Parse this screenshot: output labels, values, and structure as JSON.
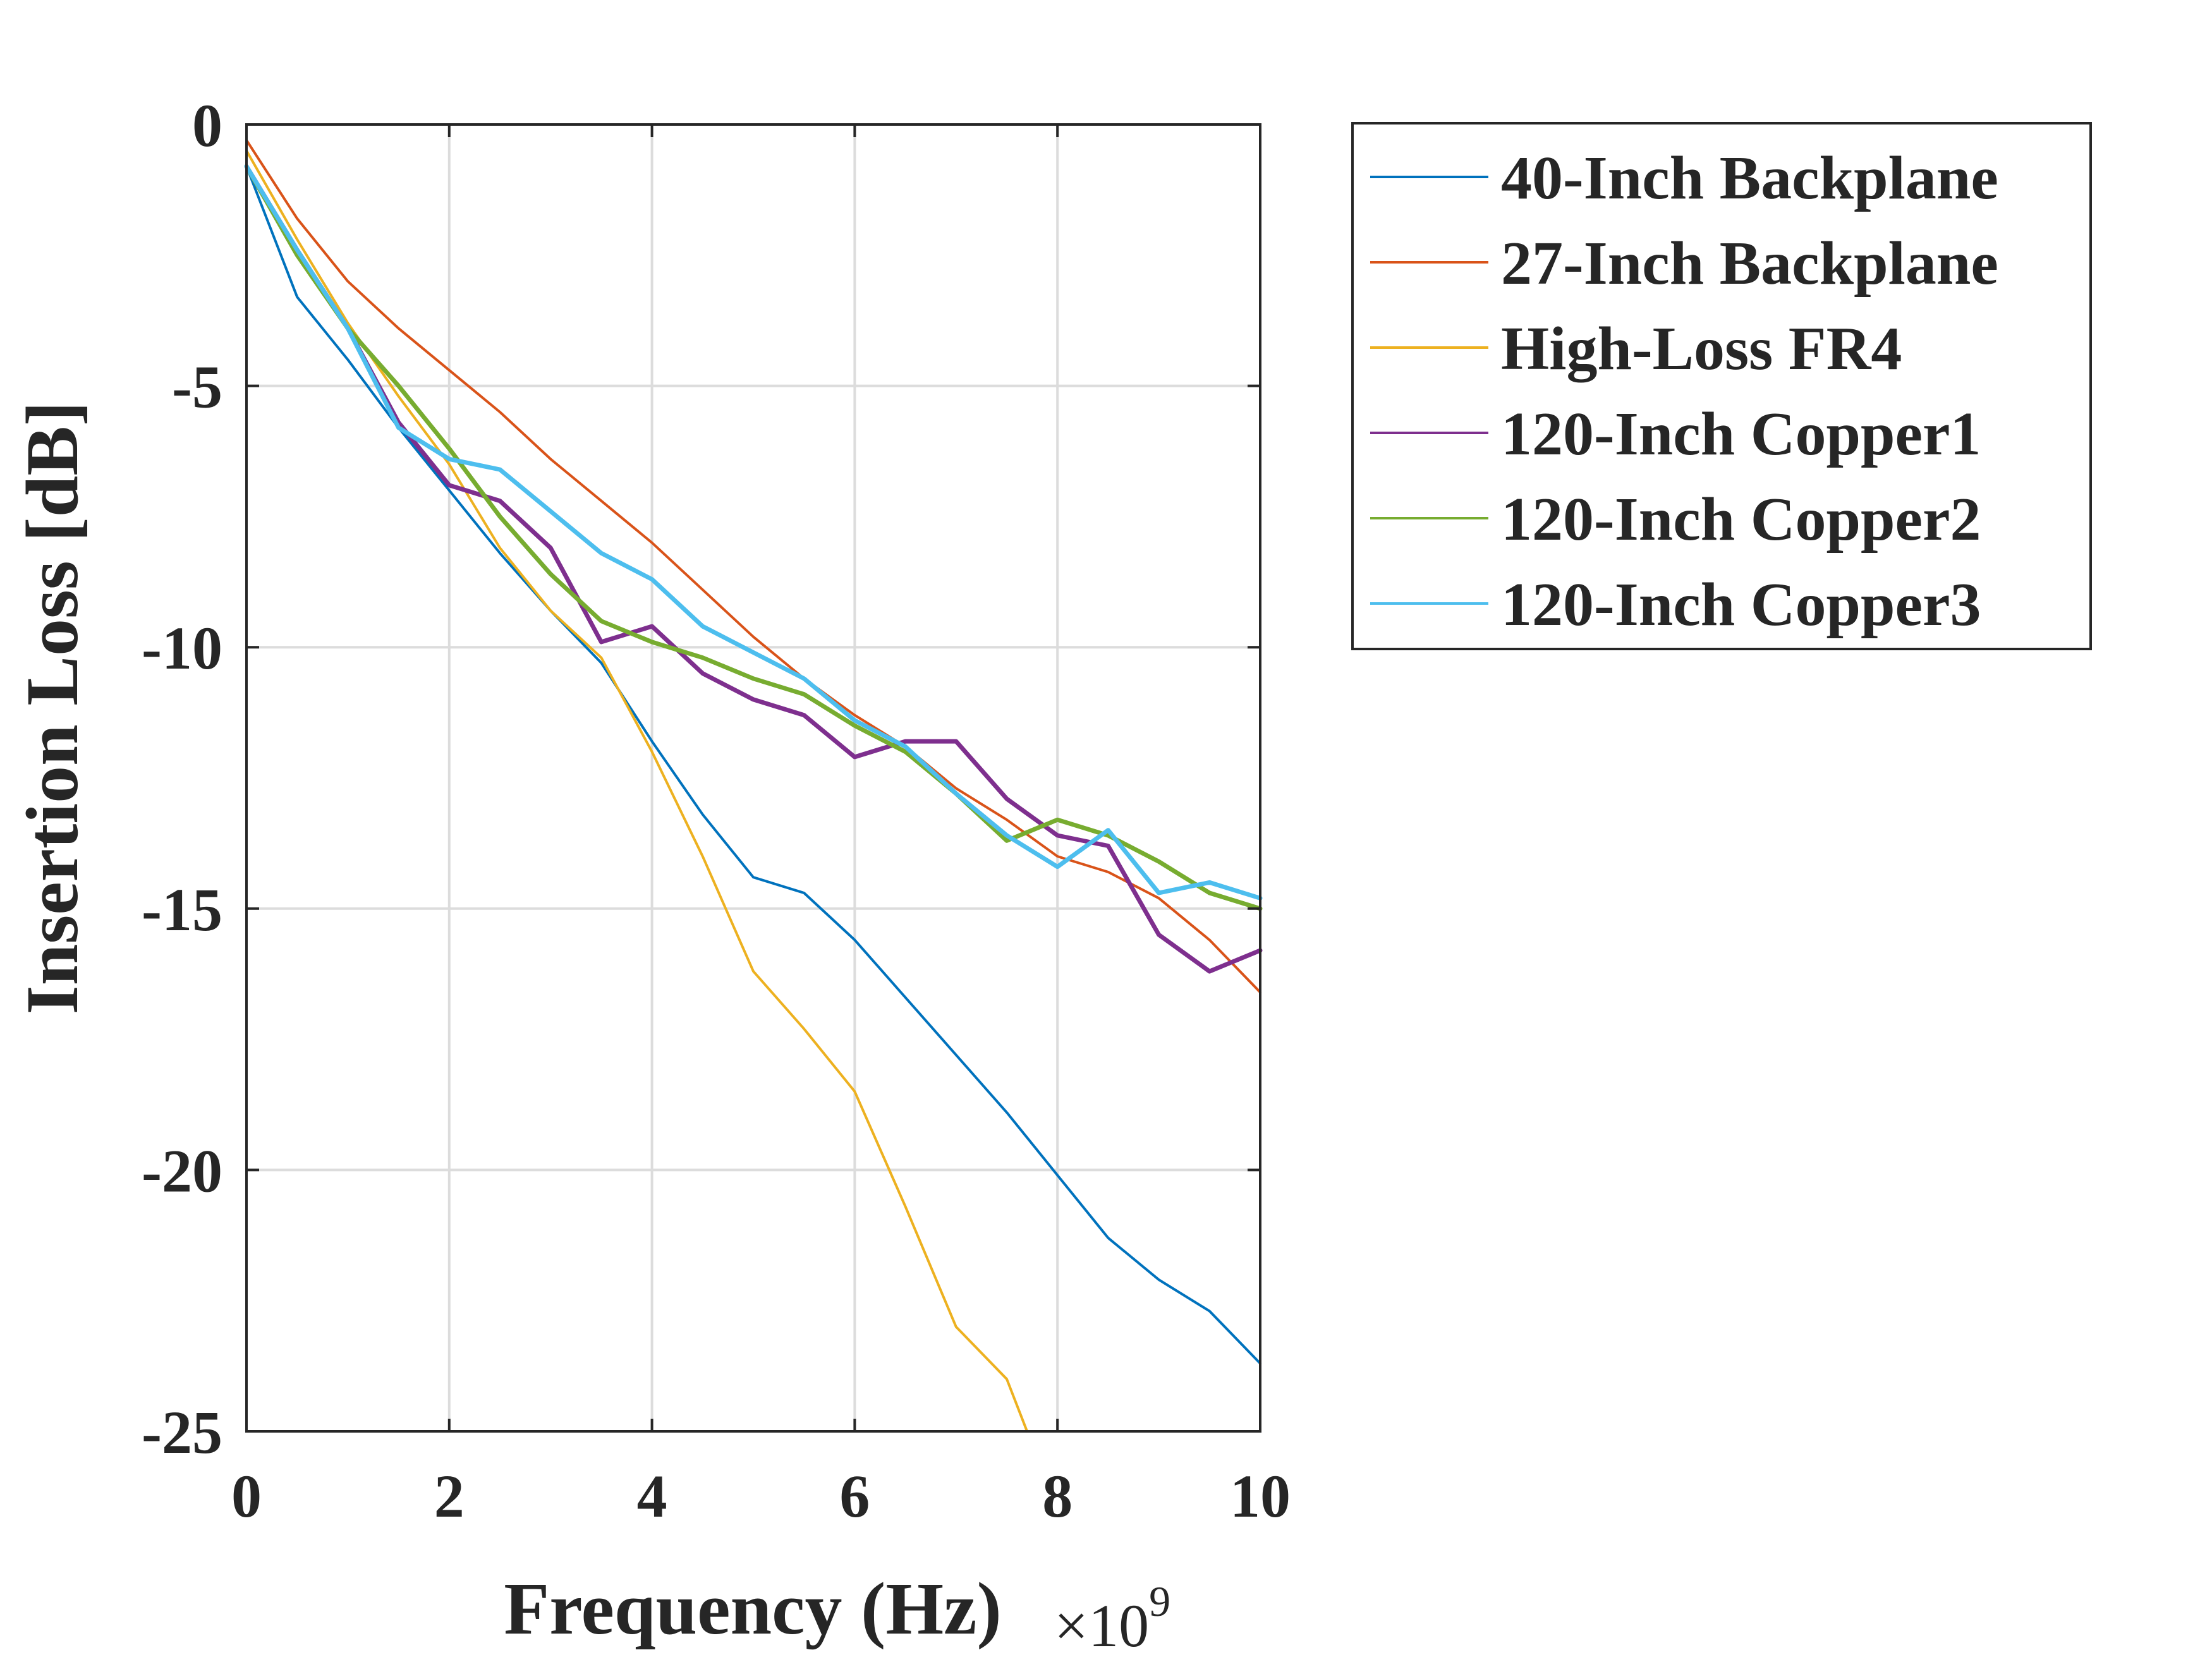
{
  "chart_data": {
    "type": "line",
    "title": "",
    "xlabel": "Frequency (Hz)",
    "x_multiplier_label": "×10",
    "x_multiplier_exponent": "9",
    "ylabel": "Insertion Loss [dB]",
    "xlim": [
      0,
      10
    ],
    "ylim": [
      -25,
      0
    ],
    "x_ticks": [
      0,
      2,
      4,
      6,
      8,
      10
    ],
    "y_ticks": [
      0,
      -5,
      -10,
      -15,
      -20,
      -25
    ],
    "x_tick_labels": [
      "0",
      "2",
      "4",
      "6",
      "8",
      "10"
    ],
    "y_tick_labels": [
      "0",
      "-5",
      "-10",
      "-15",
      "-20",
      "-25"
    ],
    "grid": true,
    "legend_position": "outside-top-right",
    "legend": [
      {
        "label": "40-Inch Backplane",
        "color": "#0072BD"
      },
      {
        "label": "27-Inch Backplane",
        "color": "#D95319"
      },
      {
        "label": "High-Loss FR4",
        "color": "#EDB120"
      },
      {
        "label": "120-Inch Copper1",
        "color": "#7E2F8E"
      },
      {
        "label": "120-Inch Copper2",
        "color": "#77AC30"
      },
      {
        "label": "120-Inch Copper3",
        "color": "#4DBEEE"
      }
    ],
    "series": [
      {
        "color": "#0072BD",
        "x": [
          0,
          0.5,
          1,
          1.5,
          2,
          2.5,
          3,
          3.5,
          4,
          4.5,
          5,
          5.5,
          6,
          6.5,
          7,
          7.5,
          8,
          8.5,
          9,
          9.5,
          10
        ],
        "y": [
          -0.8,
          -3.3,
          -4.5,
          -5.8,
          -7.0,
          -8.2,
          -9.3,
          -10.3,
          -11.8,
          -13.2,
          -14.4,
          -14.7,
          -15.6,
          -16.7,
          -17.8,
          -18.9,
          -20.1,
          -21.3,
          -22.1,
          -22.7,
          -23.7
        ]
      },
      {
        "color": "#D95319",
        "x": [
          0,
          0.5,
          1,
          1.5,
          2,
          2.5,
          3,
          3.5,
          4,
          4.5,
          5,
          5.5,
          6,
          6.5,
          7,
          7.5,
          8,
          8.5,
          9,
          9.5,
          10
        ],
        "y": [
          -0.3,
          -1.8,
          -3.0,
          -3.9,
          -4.7,
          -5.5,
          -6.4,
          -7.2,
          -8.0,
          -8.9,
          -9.8,
          -10.6,
          -11.3,
          -11.9,
          -12.7,
          -13.3,
          -14.0,
          -14.3,
          -14.8,
          -15.6,
          -16.6
        ]
      },
      {
        "color": "#EDB120",
        "x": [
          0,
          0.5,
          1,
          1.5,
          2,
          2.5,
          3,
          3.5,
          4,
          4.5,
          5,
          5.5,
          6,
          6.5,
          7,
          7.5,
          7.7
        ],
        "y": [
          -0.5,
          -2.2,
          -3.8,
          -5.2,
          -6.5,
          -8.1,
          -9.3,
          -10.2,
          -12.0,
          -14.0,
          -16.2,
          -17.3,
          -18.5,
          -20.7,
          -23.0,
          -24.0,
          -25.0
        ]
      },
      {
        "color": "#7E2F8E",
        "x": [
          0,
          0.5,
          1,
          1.5,
          2,
          2.5,
          3,
          3.5,
          4,
          4.5,
          5,
          5.5,
          6,
          6.5,
          7,
          7.5,
          8,
          8.5,
          9,
          9.5,
          10
        ],
        "y": [
          -0.8,
          -2.4,
          -3.9,
          -5.7,
          -6.9,
          -7.2,
          -8.1,
          -9.9,
          -9.6,
          -10.5,
          -11.0,
          -11.3,
          -12.1,
          -11.8,
          -11.8,
          -12.9,
          -13.6,
          -13.8,
          -15.5,
          -16.2,
          -15.8
        ]
      },
      {
        "color": "#77AC30",
        "x": [
          0,
          0.5,
          1,
          1.5,
          2,
          2.5,
          3,
          3.5,
          4,
          4.5,
          5,
          5.5,
          6,
          6.5,
          7,
          7.5,
          8,
          8.5,
          9,
          9.5,
          10
        ],
        "y": [
          -0.8,
          -2.5,
          -3.9,
          -5.0,
          -6.2,
          -7.5,
          -8.6,
          -9.5,
          -9.9,
          -10.2,
          -10.6,
          -10.9,
          -11.5,
          -12.0,
          -12.8,
          -13.7,
          -13.3,
          -13.6,
          -14.1,
          -14.7,
          -15.0
        ]
      },
      {
        "color": "#4DBEEE",
        "x": [
          0,
          0.5,
          1,
          1.5,
          2,
          2.5,
          3,
          3.5,
          4,
          4.5,
          5,
          5.5,
          6,
          6.5,
          7,
          7.5,
          8,
          8.5,
          9,
          9.5,
          10
        ],
        "y": [
          -0.8,
          -2.4,
          -3.9,
          -5.8,
          -6.4,
          -6.6,
          -7.4,
          -8.2,
          -8.7,
          -9.6,
          -10.1,
          -10.6,
          -11.4,
          -11.9,
          -12.8,
          -13.6,
          -14.2,
          -13.5,
          -14.7,
          -14.5,
          -14.8
        ]
      }
    ]
  }
}
